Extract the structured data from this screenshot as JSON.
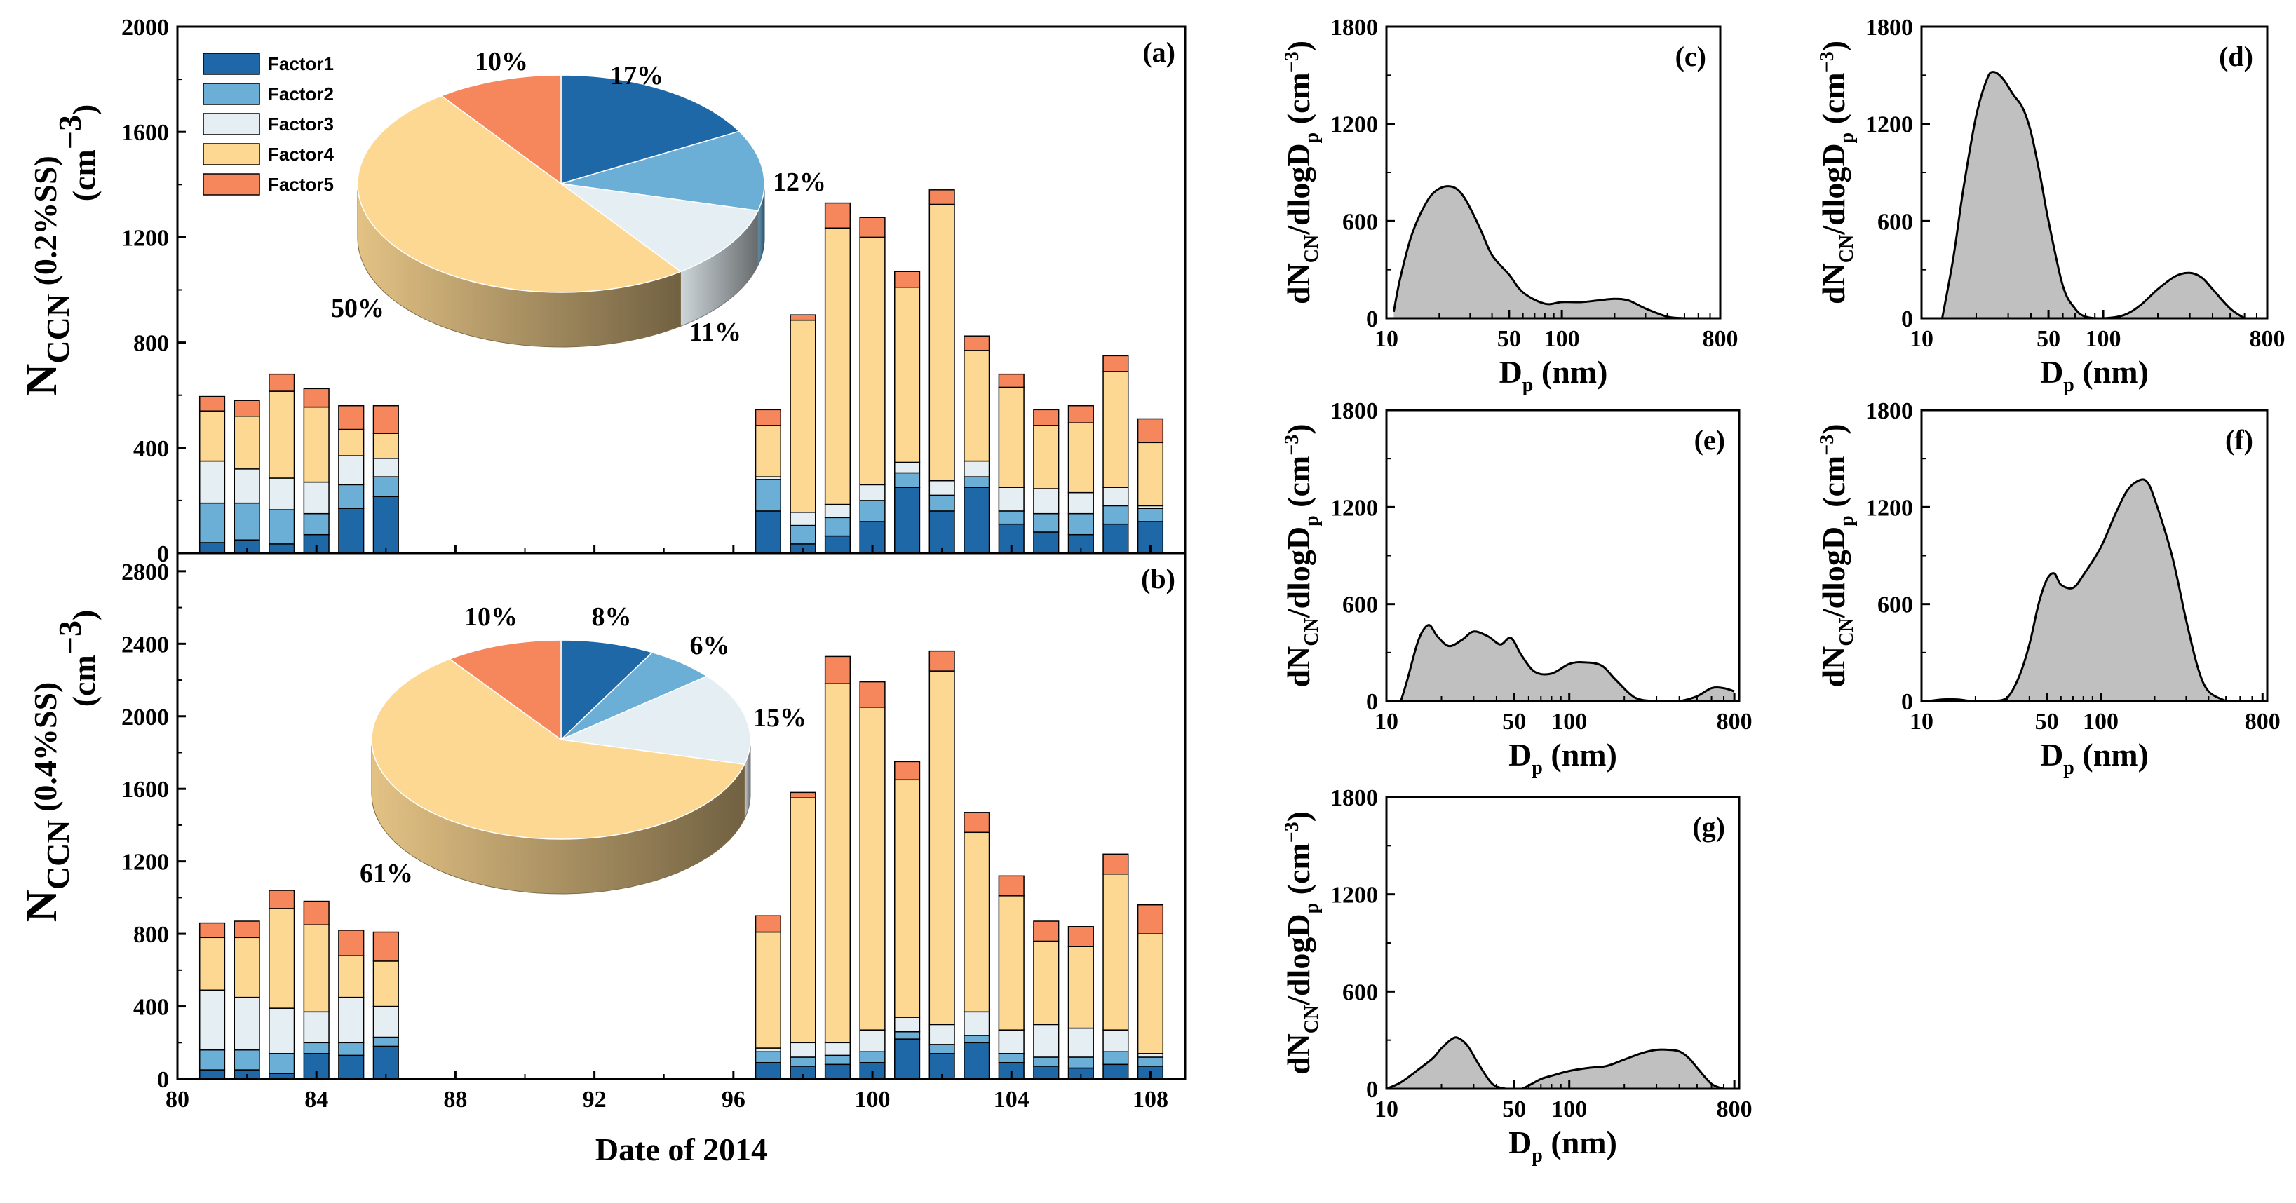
{
  "chart_data": [
    {
      "id": "a",
      "type": "bar",
      "stacked": true,
      "panel_label": "(a)",
      "ylabel_main": "N",
      "ylabel_sub": "CCN",
      "ylabel_cond": "(0.2%SS)",
      "ylabel_unit": "(cm",
      "ylabel_unit_exp": "−3",
      "ylabel_unit_close": ")",
      "ylim": [
        0,
        2000
      ],
      "yticks": [
        "0",
        "400",
        "800",
        "1200",
        "1600",
        "2000"
      ],
      "xlim": [
        80,
        109
      ],
      "xticks": [
        "80",
        "84",
        "88",
        "92",
        "96",
        "100",
        "104",
        "108"
      ],
      "x": [
        81,
        82,
        83,
        84,
        85,
        86,
        97,
        98,
        99,
        100,
        101,
        102,
        103,
        104,
        105,
        106,
        107,
        108
      ],
      "series": [
        {
          "name": "Factor1",
          "color": "#1f68a8",
          "values": [
            40,
            50,
            35,
            70,
            170,
            215,
            160,
            35,
            65,
            120,
            250,
            160,
            250,
            110,
            80,
            70,
            110,
            120
          ]
        },
        {
          "name": "Factor2",
          "color": "#6baed6",
          "values": [
            150,
            140,
            130,
            80,
            90,
            75,
            120,
            70,
            70,
            80,
            55,
            60,
            40,
            50,
            70,
            80,
            70,
            50
          ]
        },
        {
          "name": "Factor3",
          "color": "#e5eef2",
          "values": [
            160,
            130,
            120,
            120,
            110,
            70,
            10,
            50,
            50,
            60,
            40,
            55,
            60,
            90,
            95,
            80,
            70,
            10
          ]
        },
        {
          "name": "Factor4",
          "color": "#fcd893",
          "values": [
            190,
            200,
            330,
            285,
            100,
            95,
            195,
            730,
            1050,
            940,
            665,
            1050,
            420,
            380,
            240,
            265,
            440,
            240
          ]
        },
        {
          "name": "Factor5",
          "color": "#f6875d",
          "values": [
            55,
            60,
            65,
            70,
            90,
            105,
            60,
            20,
            95,
            75,
            60,
            55,
            55,
            50,
            60,
            65,
            60,
            90
          ]
        }
      ],
      "pie": [
        {
          "name": "Factor1",
          "value": 17,
          "label": "17%"
        },
        {
          "name": "Factor2",
          "value": 12,
          "label": "12%"
        },
        {
          "name": "Factor3",
          "value": 11,
          "label": "11%"
        },
        {
          "name": "Factor4",
          "value": 50,
          "label": "50%"
        },
        {
          "name": "Factor5",
          "value": 10,
          "label": "10%"
        }
      ],
      "legend": [
        "Factor1",
        "Factor2",
        "Factor3",
        "Factor4",
        "Factor5"
      ]
    },
    {
      "id": "b",
      "type": "bar",
      "stacked": true,
      "panel_label": "(b)",
      "ylabel_main": "N",
      "ylabel_sub": "CCN",
      "ylabel_cond": "(0.4%SS)",
      "ylabel_unit": "(cm",
      "ylabel_unit_exp": "−3",
      "ylabel_unit_close": ")",
      "xlabel": "Date of 2014",
      "ylim": [
        0,
        2900
      ],
      "yticks": [
        "0",
        "400",
        "800",
        "1200",
        "1600",
        "2000",
        "2400",
        "2800"
      ],
      "xlim": [
        80,
        109
      ],
      "xticks": [
        "80",
        "84",
        "88",
        "92",
        "96",
        "100",
        "104",
        "108"
      ],
      "x": [
        81,
        82,
        83,
        84,
        85,
        86,
        97,
        98,
        99,
        100,
        101,
        102,
        103,
        104,
        105,
        106,
        107,
        108
      ],
      "series": [
        {
          "name": "Factor1",
          "color": "#1f68a8",
          "values": [
            50,
            50,
            30,
            140,
            130,
            180,
            90,
            70,
            80,
            90,
            220,
            140,
            200,
            90,
            70,
            60,
            80,
            70
          ]
        },
        {
          "name": "Factor2",
          "color": "#6baed6",
          "values": [
            110,
            110,
            110,
            60,
            70,
            50,
            60,
            50,
            50,
            60,
            40,
            50,
            40,
            50,
            50,
            60,
            70,
            50
          ]
        },
        {
          "name": "Factor3",
          "color": "#e5eef2",
          "values": [
            330,
            290,
            250,
            170,
            250,
            170,
            20,
            80,
            70,
            120,
            80,
            110,
            130,
            130,
            180,
            160,
            120,
            20
          ]
        },
        {
          "name": "Factor4",
          "color": "#fcd893",
          "values": [
            290,
            330,
            550,
            480,
            230,
            250,
            640,
            1350,
            1980,
            1780,
            1310,
            1950,
            990,
            740,
            460,
            450,
            860,
            660
          ]
        },
        {
          "name": "Factor5",
          "color": "#f6875d",
          "values": [
            80,
            90,
            100,
            130,
            140,
            160,
            90,
            30,
            150,
            140,
            100,
            110,
            110,
            110,
            110,
            110,
            110,
            160
          ]
        }
      ],
      "pie": [
        {
          "name": "Factor1",
          "value": 8,
          "label": "8%"
        },
        {
          "name": "Factor2",
          "value": 6,
          "label": "6%"
        },
        {
          "name": "Factor3",
          "value": 15,
          "label": "15%"
        },
        {
          "name": "Factor4",
          "value": 61,
          "label": "61%"
        },
        {
          "name": "Factor5",
          "value": 10,
          "label": "10%"
        }
      ]
    },
    {
      "id": "c",
      "type": "area",
      "panel_label": "(c)",
      "xscale": "log",
      "xlim": [
        10,
        800
      ],
      "ylim": [
        0,
        1800
      ],
      "xticks": [
        "10",
        "50",
        "100",
        "800"
      ],
      "yticks": [
        "0",
        "600",
        "1200",
        "1800"
      ],
      "xlabel": "D",
      "xlabel_sub": "p",
      "xlabel_unit": "(nm)",
      "ylabel": "dN",
      "ylabel_sub1": "CN",
      "ylabel_mid": "/dlogD",
      "ylabel_sub2": "p",
      "ylabel_unit": "(cm",
      "ylabel_unit_exp": "−3",
      "ylabel_unit_close": ")",
      "x": [
        11,
        12,
        14,
        17,
        20,
        24,
        28,
        34,
        40,
        50,
        60,
        80,
        100,
        130,
        160,
        200,
        240,
        300,
        400,
        500
      ],
      "y": [
        40,
        250,
        520,
        720,
        800,
        810,
        740,
        560,
        390,
        270,
        160,
        90,
        100,
        100,
        110,
        120,
        110,
        60,
        10,
        0
      ]
    },
    {
      "id": "d",
      "type": "area",
      "panel_label": "(d)",
      "xscale": "log",
      "xlim": [
        10,
        800
      ],
      "ylim": [
        0,
        1800
      ],
      "xticks": [
        "10",
        "50",
        "100",
        "800"
      ],
      "yticks": [
        "0",
        "600",
        "1200",
        "1800"
      ],
      "xlabel": "D",
      "xlabel_sub": "p",
      "xlabel_unit": "(nm)",
      "ylabel": "dN",
      "ylabel_sub1": "CN",
      "ylabel_mid": "/dlogD",
      "ylabel_sub2": "p",
      "ylabel_unit": "(cm",
      "ylabel_unit_exp": "−3",
      "ylabel_unit_close": ")",
      "x": [
        13,
        15,
        17,
        20,
        23,
        25,
        28,
        32,
        36,
        40,
        45,
        50,
        60,
        70,
        80,
        100,
        130,
        160,
        200,
        250,
        300,
        350,
        400,
        500,
        600
      ],
      "y": [
        0,
        380,
        800,
        1250,
        1480,
        1520,
        1480,
        1380,
        1300,
        1150,
        880,
        600,
        200,
        60,
        10,
        0,
        20,
        80,
        180,
        260,
        280,
        250,
        180,
        60,
        0
      ]
    },
    {
      "id": "e",
      "type": "area",
      "panel_label": "(e)",
      "xscale": "log",
      "xlim": [
        10,
        850
      ],
      "ylim": [
        0,
        1800
      ],
      "xticks": [
        "10",
        "50",
        "100",
        "800"
      ],
      "yticks": [
        "0",
        "600",
        "1200",
        "1800"
      ],
      "xlabel": "D",
      "xlabel_sub": "p",
      "xlabel_unit": "(nm)",
      "ylabel": "dN",
      "ylabel_sub1": "CN",
      "ylabel_mid": "/dlogD",
      "ylabel_sub2": "p",
      "ylabel_unit": "(cm",
      "ylabel_unit_exp": "−3",
      "ylabel_unit_close": ")",
      "x": [
        12,
        13,
        15,
        17,
        19,
        22,
        26,
        30,
        36,
        42,
        48,
        55,
        65,
        80,
        100,
        120,
        150,
        180,
        230,
        300,
        400,
        500,
        600,
        700,
        800
      ],
      "y": [
        0,
        130,
        380,
        470,
        400,
        340,
        380,
        430,
        400,
        350,
        390,
        280,
        180,
        170,
        230,
        240,
        220,
        130,
        20,
        0,
        0,
        30,
        80,
        80,
        60
      ]
    },
    {
      "id": "f",
      "type": "area",
      "panel_label": "(f)",
      "xscale": "log",
      "xlim": [
        10,
        850
      ],
      "ylim": [
        0,
        1800
      ],
      "xticks": [
        "10",
        "50",
        "100",
        "800"
      ],
      "yticks": [
        "0",
        "600",
        "1200",
        "1800"
      ],
      "xlabel": "D",
      "xlabel_sub": "p",
      "xlabel_unit": "(nm)",
      "ylabel": "dN",
      "ylabel_sub1": "CN",
      "ylabel_mid": "/dlogD",
      "ylabel_sub2": "p",
      "ylabel_unit": "(cm",
      "ylabel_unit_exp": "−3",
      "ylabel_unit_close": ")",
      "x": [
        11,
        13,
        16,
        19,
        25,
        30,
        35,
        40,
        45,
        50,
        55,
        60,
        70,
        80,
        100,
        120,
        140,
        160,
        180,
        200,
        250,
        300,
        350,
        400,
        500
      ],
      "y": [
        0,
        10,
        10,
        0,
        0,
        20,
        150,
        350,
        600,
        750,
        790,
        720,
        700,
        780,
        950,
        1150,
        1300,
        1360,
        1360,
        1250,
        900,
        500,
        200,
        60,
        0
      ]
    },
    {
      "id": "g",
      "type": "area",
      "panel_label": "(g)",
      "xscale": "log",
      "xlim": [
        10,
        850
      ],
      "ylim": [
        0,
        1800
      ],
      "xticks": [
        "10",
        "50",
        "100",
        "800"
      ],
      "yticks": [
        "0",
        "600",
        "1200",
        "1800"
      ],
      "xlabel": "D",
      "xlabel_sub": "p",
      "xlabel_unit": "(nm)",
      "ylabel": "dN",
      "ylabel_sub1": "CN",
      "ylabel_mid": "/dlogD",
      "ylabel_sub2": "p",
      "ylabel_unit": "(cm",
      "ylabel_unit_exp": "−3",
      "ylabel_unit_close": ")",
      "x": [
        10,
        12,
        15,
        18,
        20,
        23,
        25,
        28,
        32,
        38,
        45,
        50,
        55,
        60,
        70,
        80,
        100,
        130,
        160,
        200,
        250,
        300,
        350,
        400,
        450,
        500,
        600,
        700
      ],
      "y": [
        0,
        40,
        120,
        190,
        250,
        310,
        310,
        260,
        150,
        30,
        0,
        0,
        0,
        20,
        60,
        80,
        110,
        130,
        140,
        180,
        220,
        240,
        240,
        230,
        190,
        130,
        30,
        0
      ]
    }
  ]
}
